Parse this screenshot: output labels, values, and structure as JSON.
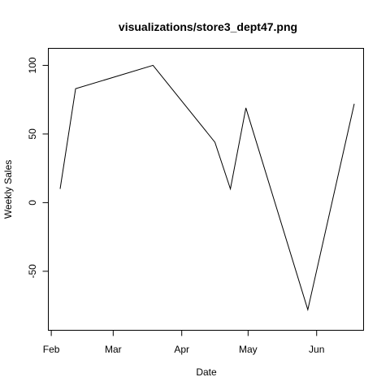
{
  "chart_data": {
    "type": "line",
    "title": "visualizations/store3_dept47.png",
    "xlabel": "Date",
    "ylabel": "Weekly Sales",
    "x": [
      "2010-02-05",
      "2010-02-12",
      "2010-03-19",
      "2010-04-16",
      "2010-04-23",
      "2010-04-30",
      "2010-05-28",
      "2010-06-18"
    ],
    "values": [
      10,
      83,
      100,
      44,
      10,
      69,
      -78,
      72
    ],
    "xlim": [
      "2010-02-05",
      "2010-06-18"
    ],
    "ylim": [
      -85,
      105
    ],
    "x_ticks": [
      {
        "date": "2010-02-01",
        "label": "Feb"
      },
      {
        "date": "2010-03-01",
        "label": "Mar"
      },
      {
        "date": "2010-04-01",
        "label": "Apr"
      },
      {
        "date": "2010-05-01",
        "label": "May"
      },
      {
        "date": "2010-06-01",
        "label": "Jun"
      }
    ],
    "y_ticks": [
      {
        "value": -50,
        "label": "-50"
      },
      {
        "value": 0,
        "label": "0"
      },
      {
        "value": 50,
        "label": "50"
      },
      {
        "value": 100,
        "label": "100"
      }
    ],
    "grid": false,
    "legend": "none",
    "line_color": "#000000"
  }
}
